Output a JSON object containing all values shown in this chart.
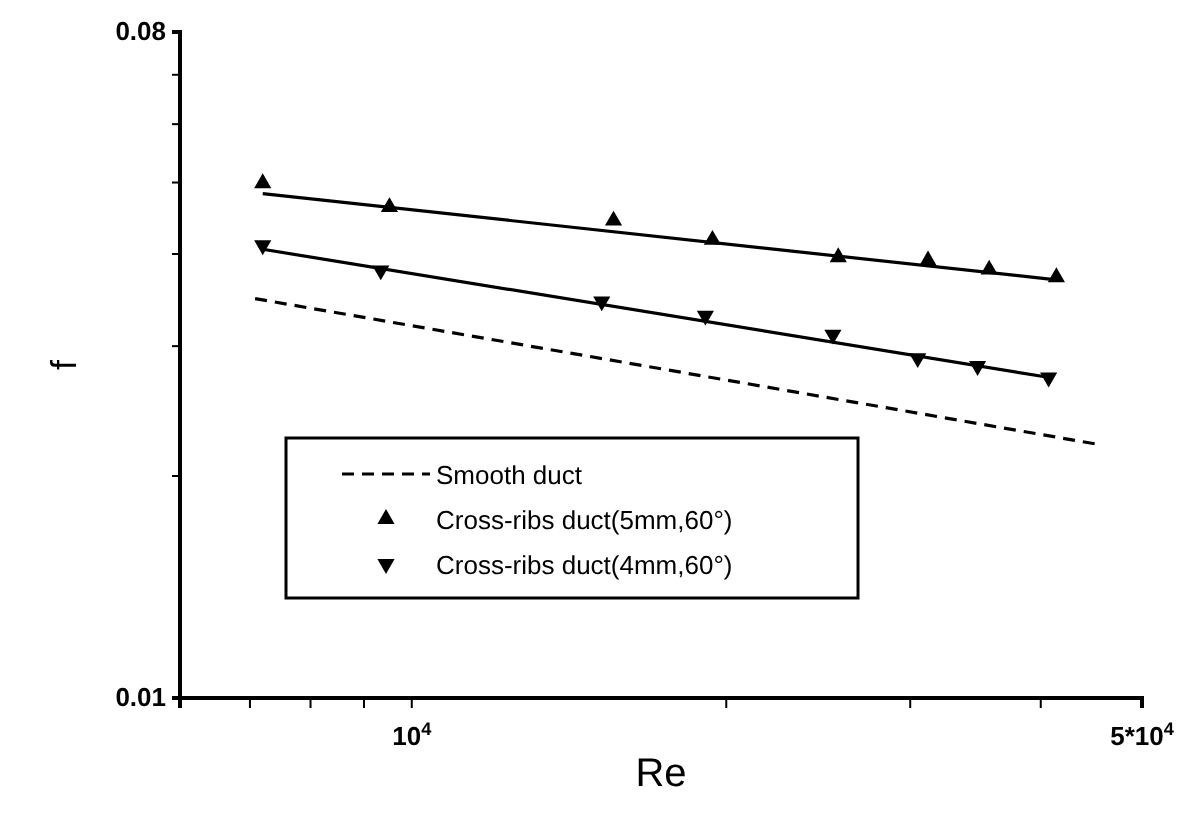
{
  "chart_data": {
    "type": "line",
    "xlabel": "Re",
    "ylabel": "f",
    "log": "xy",
    "xlim": [
      6000,
      50000
    ],
    "xticks": [
      {
        "value": 7000,
        "label": null
      },
      {
        "value": 8000,
        "label": null
      },
      {
        "value": 9000,
        "label": null
      },
      {
        "value": 10000,
        "label": "10$^{4}$"
      },
      {
        "value": 20000,
        "label": null
      },
      {
        "value": 30000,
        "label": null
      },
      {
        "value": 40000,
        "label": null
      },
      {
        "value": 50000,
        "label": "5*10$^{4}$"
      }
    ],
    "ylim": [
      0.01,
      0.08
    ],
    "yticks": [
      0.01,
      {
        "value": 0.02,
        "label": null
      },
      {
        "value": 0.03,
        "label": null
      },
      {
        "value": 0.04,
        "label": null
      },
      {
        "value": 0.05,
        "label": null
      },
      {
        "value": 0.06,
        "label": null
      },
      {
        "value": 0.07,
        "label": null
      },
      0.08
    ],
    "grid": false,
    "legend": "bottom left",
    "series": [
      {
        "name": "Smooth duct",
        "line_style": "dashed",
        "marker": "none",
        "color": "#000000",
        "x": [
          7080,
          45200
        ],
        "values": [
          0.0348,
          0.0221
        ]
      },
      {
        "name": "Cross-ribs duct(5mm,60°)",
        "type": "scatter",
        "marker": "triangle",
        "color": "#000000",
        "x": [
          7200,
          9520,
          15600,
          19400,
          25600,
          31200,
          35700,
          41400
        ],
        "values": [
          0.0499,
          0.0463,
          0.0444,
          0.0418,
          0.0396,
          0.0392,
          0.0381,
          0.0372
        ]
      },
      {
        "name": "Cross-ribs duct(4mm,60°)",
        "type": "scatter",
        "marker": "triangle-down",
        "color": "#000000",
        "x": [
          7200,
          9340,
          15200,
          19100,
          25300,
          30500,
          34800,
          40700
        ],
        "values": [
          0.0411,
          0.038,
          0.0345,
          0.033,
          0.0311,
          0.0289,
          0.0282,
          0.0272
        ]
      },
      {
        "line_style": "solid",
        "marker": "none",
        "color": "#000000",
        "x": [
          7200,
          41400
        ],
        "values": [
          0.0483,
          0.0369
        ]
      },
      {
        "line_style": "solid",
        "marker": "none",
        "color": "#000000",
        "x": [
          7200,
          40800
        ],
        "values": [
          0.0406,
          0.0272
        ]
      }
    ]
  }
}
